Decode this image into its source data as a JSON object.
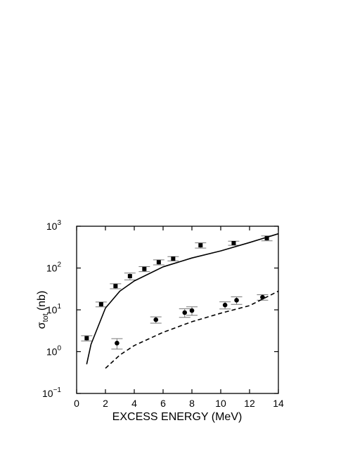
{
  "chart_data": {
    "type": "scatter",
    "x_label": "EXCESS ENERGY (MeV)",
    "y_label": {
      "symbol": "σ",
      "subscript": "tot",
      "unit": "(nb)"
    },
    "xlim": [
      0,
      14
    ],
    "xticks": [
      0,
      2,
      4,
      6,
      8,
      10,
      12,
      14
    ],
    "ylim": [
      0.1,
      1000
    ],
    "yscale": "log",
    "yticks": [
      {
        "value": 0.1,
        "label": "10",
        "exponent": "−1"
      },
      {
        "value": 1,
        "label": "10",
        "exponent": "0"
      },
      {
        "value": 10,
        "label": "10",
        "exponent": "1"
      },
      {
        "value": 100,
        "label": "10",
        "exponent": "2"
      },
      {
        "value": 1000,
        "label": "10",
        "exponent": "3"
      }
    ],
    "series": [
      {
        "kind": "points",
        "marker": "square",
        "color": "#000000",
        "x": [
          0.7,
          1.7,
          2.7,
          3.7,
          4.7,
          5.7,
          6.7,
          8.6,
          10.9,
          13.2
        ],
        "values": [
          2.1,
          13.6,
          37,
          64,
          95,
          138,
          168,
          350,
          395,
          517
        ],
        "errors": [
          0.3,
          1.8,
          5,
          12,
          13,
          19,
          20,
          50,
          45,
          70
        ]
      },
      {
        "kind": "points",
        "marker": "circle",
        "color": "#000000",
        "x": [
          2.8,
          5.5,
          7.5,
          8.0,
          10.3,
          11.1,
          12.9
        ],
        "values": [
          1.6,
          5.8,
          8.6,
          9.6,
          13,
          17,
          20
        ],
        "errors": [
          0.45,
          1.0,
          2.0,
          2.2,
          2.5,
          3.5,
          3.0
        ]
      },
      {
        "kind": "curve",
        "style": "solid",
        "color": "#000000",
        "x": [
          0.7,
          1,
          2,
          3,
          4,
          6,
          8,
          10,
          12,
          14
        ],
        "values": [
          0.5,
          1.5,
          11,
          28,
          49,
          107,
          174,
          257,
          407,
          660
        ]
      },
      {
        "kind": "curve",
        "style": "dashed",
        "color": "#000000",
        "x": [
          2,
          3,
          4,
          6,
          8,
          10,
          12,
          14
        ],
        "values": [
          0.4,
          0.83,
          1.4,
          2.9,
          5.2,
          8.3,
          12.6,
          28
        ]
      }
    ]
  }
}
